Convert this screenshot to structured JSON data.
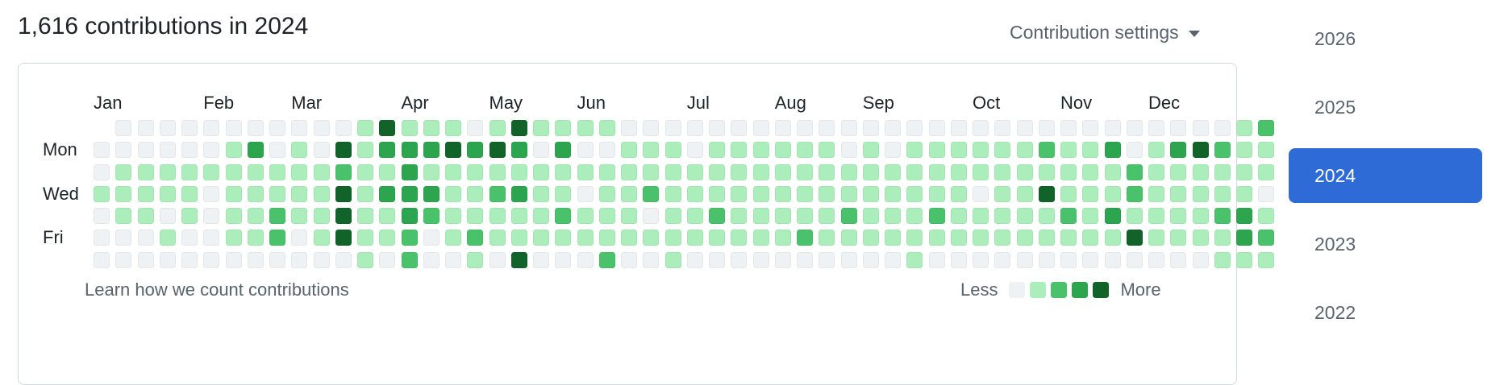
{
  "header": {
    "title": "1,616 contributions in 2024",
    "settings_label": "Contribution settings"
  },
  "graph": {
    "months": [
      {
        "label": "Jan",
        "week": 0
      },
      {
        "label": "Feb",
        "week": 5
      },
      {
        "label": "Mar",
        "week": 9
      },
      {
        "label": "Apr",
        "week": 14
      },
      {
        "label": "May",
        "week": 18
      },
      {
        "label": "Jun",
        "week": 22
      },
      {
        "label": "Jul",
        "week": 27
      },
      {
        "label": "Aug",
        "week": 31
      },
      {
        "label": "Sep",
        "week": 35
      },
      {
        "label": "Oct",
        "week": 40
      },
      {
        "label": "Nov",
        "week": 44
      },
      {
        "label": "Dec",
        "week": 48
      }
    ],
    "day_labels": [
      "Mon",
      "Wed",
      "Fri"
    ],
    "levels": [
      [
        -1,
        0,
        0,
        0,
        0,
        0,
        0,
        0,
        0,
        0,
        0,
        0,
        1,
        4,
        1,
        1,
        1,
        0,
        1,
        4,
        1,
        1,
        1,
        1,
        0,
        0,
        0,
        0,
        0,
        0,
        0,
        0,
        0,
        0,
        0,
        0,
        0,
        0,
        0,
        0,
        0,
        0,
        0,
        0,
        0,
        0,
        0,
        0,
        0,
        0,
        0,
        0,
        1,
        2
      ],
      [
        0,
        0,
        0,
        0,
        0,
        0,
        1,
        3,
        0,
        1,
        0,
        4,
        1,
        3,
        3,
        3,
        4,
        3,
        4,
        3,
        0,
        3,
        0,
        0,
        1,
        1,
        1,
        0,
        1,
        1,
        1,
        1,
        1,
        1,
        0,
        1,
        0,
        1,
        1,
        1,
        1,
        1,
        1,
        2,
        1,
        1,
        3,
        0,
        1,
        3,
        4,
        2,
        1,
        1
      ],
      [
        0,
        1,
        1,
        1,
        1,
        1,
        1,
        1,
        1,
        1,
        1,
        2,
        1,
        1,
        3,
        1,
        1,
        1,
        1,
        1,
        1,
        1,
        1,
        1,
        1,
        1,
        1,
        1,
        1,
        1,
        1,
        1,
        1,
        1,
        1,
        1,
        1,
        1,
        1,
        1,
        1,
        1,
        1,
        1,
        1,
        1,
        1,
        2,
        1,
        1,
        1,
        1,
        1,
        1
      ],
      [
        1,
        1,
        1,
        1,
        1,
        0,
        1,
        1,
        1,
        1,
        1,
        4,
        1,
        3,
        3,
        3,
        1,
        1,
        2,
        3,
        1,
        1,
        0,
        1,
        1,
        2,
        1,
        1,
        1,
        1,
        1,
        1,
        1,
        1,
        1,
        1,
        1,
        1,
        1,
        1,
        0,
        1,
        1,
        4,
        1,
        1,
        1,
        2,
        1,
        1,
        1,
        1,
        1,
        0
      ],
      [
        0,
        1,
        1,
        0,
        1,
        0,
        1,
        1,
        2,
        1,
        1,
        4,
        1,
        1,
        3,
        2,
        1,
        1,
        1,
        1,
        1,
        2,
        1,
        1,
        1,
        0,
        1,
        1,
        2,
        1,
        1,
        1,
        1,
        1,
        2,
        1,
        1,
        1,
        2,
        1,
        1,
        1,
        1,
        1,
        2,
        1,
        3,
        1,
        1,
        1,
        1,
        2,
        3,
        1
      ],
      [
        0,
        0,
        0,
        1,
        0,
        0,
        1,
        1,
        2,
        0,
        1,
        4,
        1,
        1,
        2,
        0,
        1,
        2,
        1,
        1,
        1,
        1,
        1,
        1,
        1,
        1,
        1,
        1,
        1,
        1,
        1,
        1,
        2,
        1,
        1,
        1,
        1,
        1,
        1,
        1,
        1,
        1,
        1,
        1,
        1,
        1,
        1,
        4,
        1,
        1,
        1,
        1,
        3,
        2
      ],
      [
        0,
        0,
        0,
        0,
        0,
        0,
        0,
        0,
        0,
        0,
        0,
        0,
        1,
        0,
        2,
        0,
        0,
        1,
        0,
        4,
        0,
        0,
        0,
        2,
        0,
        0,
        1,
        0,
        0,
        0,
        0,
        0,
        0,
        0,
        0,
        0,
        0,
        1,
        0,
        0,
        0,
        0,
        0,
        0,
        0,
        0,
        0,
        0,
        0,
        0,
        0,
        1,
        1,
        1
      ]
    ],
    "colors": [
      "#eff2f5",
      "#aceebb",
      "#4ac26b",
      "#2da44e",
      "#116329"
    ],
    "footer": {
      "learn_link": "Learn how we count contributions",
      "legend_less": "Less",
      "legend_more": "More"
    }
  },
  "years": [
    {
      "label": "2026",
      "selected": false
    },
    {
      "label": "2025",
      "selected": false
    },
    {
      "label": "2024",
      "selected": true
    },
    {
      "label": "2023",
      "selected": false
    },
    {
      "label": "2022",
      "selected": false
    }
  ]
}
